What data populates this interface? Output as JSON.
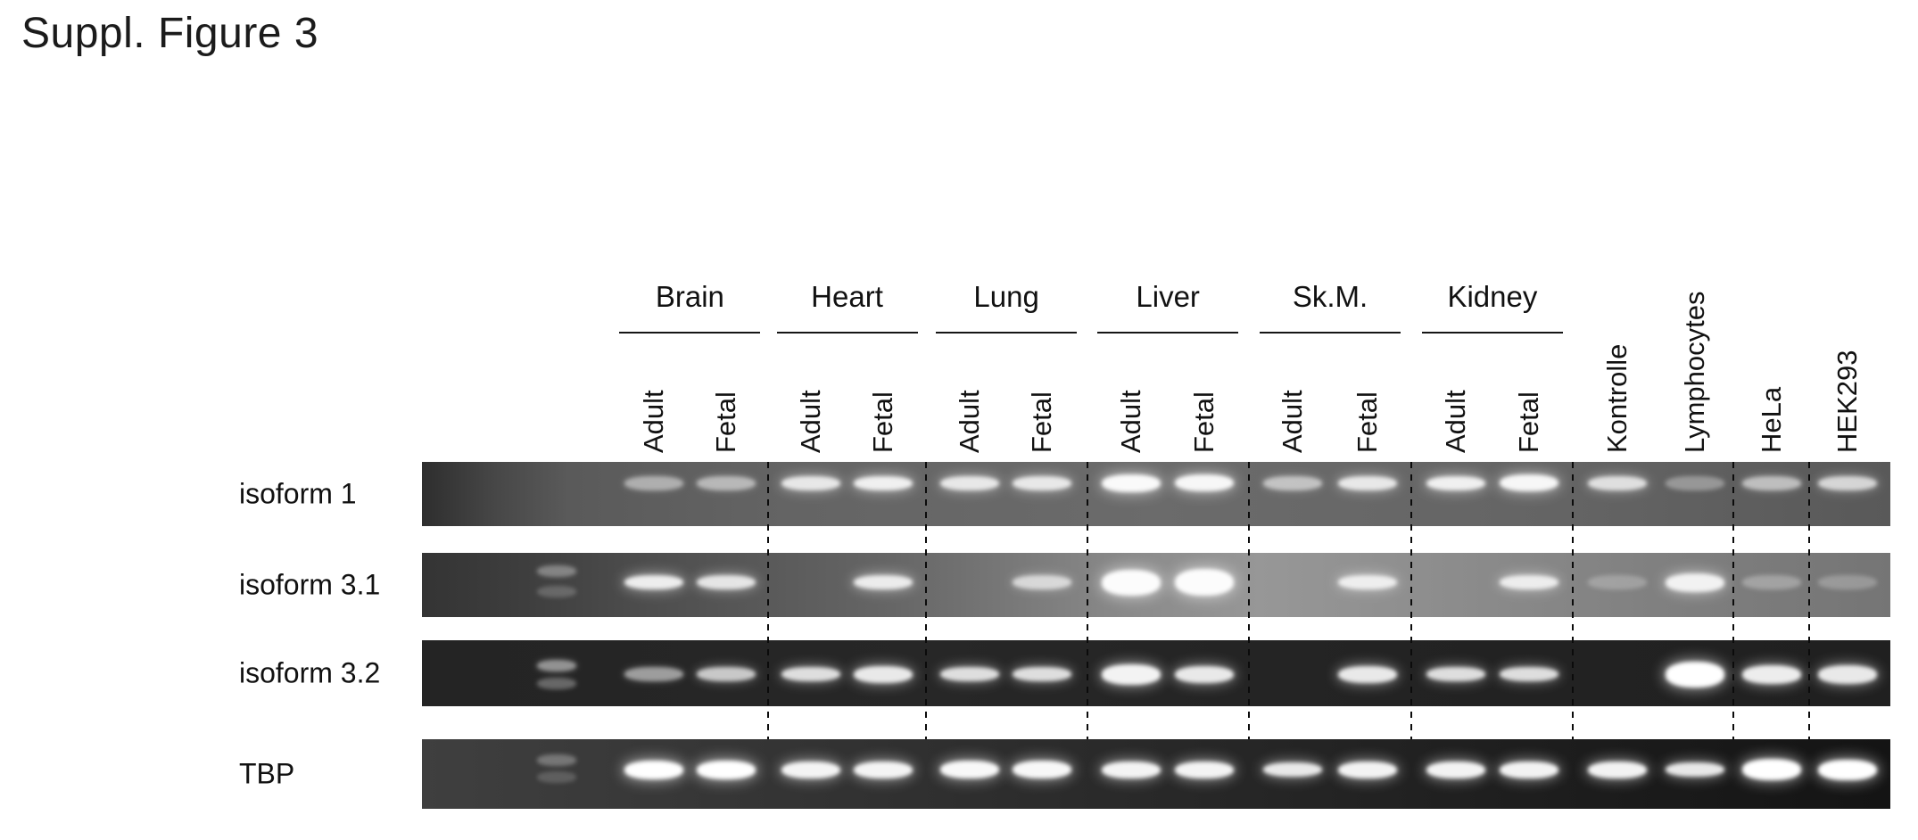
{
  "figure": {
    "title": "Suppl. Figure 3",
    "tissue_groups": [
      {
        "label": "Brain",
        "sub_labels": [
          "Adult",
          "Fetal"
        ]
      },
      {
        "label": "Heart",
        "sub_labels": [
          "Adult",
          "Fetal"
        ]
      },
      {
        "label": "Lung",
        "sub_labels": [
          "Adult",
          "Fetal"
        ]
      },
      {
        "label": "Liver",
        "sub_labels": [
          "Adult",
          "Fetal"
        ]
      },
      {
        "label": "Sk.M.",
        "sub_labels": [
          "Adult",
          "Fetal"
        ]
      },
      {
        "label": "Kidney",
        "sub_labels": [
          "Adult",
          "Fetal"
        ]
      }
    ],
    "cell_line_labels": [
      "Kontrolle",
      "Lymphocytes",
      "HeLa",
      "HEK293"
    ]
  },
  "chart_data": {
    "type": "heatmap",
    "title": "Suppl. Figure 3",
    "description": "RT-PCR agarose gel electrophoresis; band intensity per lane (0 = no band, 1 = strongest). First lane of each strip is a size ladder.",
    "lane_labels": [
      "Brain Adult",
      "Brain Fetal",
      "Heart Adult",
      "Heart Fetal",
      "Lung Adult",
      "Lung Fetal",
      "Liver Adult",
      "Liver Fetal",
      "Sk.M. Adult",
      "Sk.M. Fetal",
      "Kidney Adult",
      "Kidney Fetal",
      "Kontrolle",
      "Lymphocytes",
      "HeLa",
      "HEK293"
    ],
    "rows": [
      {
        "label": "isoform 1",
        "band_y": 0.33,
        "bg": "#2e2e2e 0%, #474747 5%, #5a5a5a 10%, #646464 25%, #6b6b6b 50%, #646464 78%, #595959 100%",
        "ladder": [],
        "values": [
          0.5,
          0.55,
          0.85,
          0.9,
          0.85,
          0.85,
          [
            0.97,
            1.25
          ],
          [
            0.95,
            1.2
          ],
          0.6,
          0.85,
          0.9,
          [
            0.95,
            1.2
          ],
          0.8,
          0.35,
          0.6,
          0.75
        ]
      },
      {
        "label": "isoform 3.1",
        "band_y": 0.46,
        "bg": "#343434 0%, #3e3e3e 7%, #4d4d4d 15%, #666666 32%, #8a8a8a 48%, #979797 57%, #8e8e8e 68%, #808080 84%, #757575 100%",
        "ladder": [
          {
            "y": 0.28,
            "i": 0.35
          },
          {
            "y": 0.6,
            "i": 0.2
          }
        ],
        "values": [
          0.9,
          0.85,
          0,
          0.88,
          0,
          0.7,
          [
            0.98,
            1.8
          ],
          [
            0.98,
            1.9
          ],
          0,
          0.85,
          0,
          0.85,
          0.25,
          [
            0.9,
            1.3
          ],
          0.3,
          0.25
        ]
      },
      {
        "label": "isoform 3.2",
        "band_y": 0.52,
        "bg": "#242424 0%, #272727 35%, #232323 65%, #202020 100%",
        "ladder": [
          {
            "y": 0.38,
            "i": 0.5
          },
          {
            "y": 0.66,
            "i": 0.3
          }
        ],
        "values": [
          0.55,
          0.75,
          0.85,
          [
            0.9,
            1.2
          ],
          0.85,
          0.85,
          [
            0.95,
            1.4
          ],
          [
            0.9,
            1.2
          ],
          0,
          [
            0.9,
            1.2
          ],
          0.85,
          0.85,
          0,
          [
            1,
            1.8
          ],
          [
            0.92,
            1.3
          ],
          [
            0.9,
            1.3
          ]
        ]
      },
      {
        "label": "TBP",
        "band_y": 0.44,
        "bg": "#3f3f3f 0%, #373737 18%, #2c2c2c 42%, #202020 70%, #141414 100%",
        "ladder": [
          {
            "y": 0.3,
            "i": 0.3
          },
          {
            "y": 0.55,
            "i": 0.18
          }
        ],
        "values": [
          [
            1,
            1.3
          ],
          [
            1,
            1.3
          ],
          [
            0.95,
            1.2
          ],
          [
            0.95,
            1.2
          ],
          [
            0.97,
            1.25
          ],
          [
            0.97,
            1.25
          ],
          [
            0.95,
            1.2
          ],
          [
            0.95,
            1.2
          ],
          0.9,
          [
            0.95,
            1.2
          ],
          [
            0.95,
            1.2
          ],
          [
            0.95,
            1.2
          ],
          [
            0.95,
            1.2
          ],
          0.9,
          [
            1,
            1.5
          ],
          [
            1,
            1.45
          ]
        ]
      }
    ]
  }
}
